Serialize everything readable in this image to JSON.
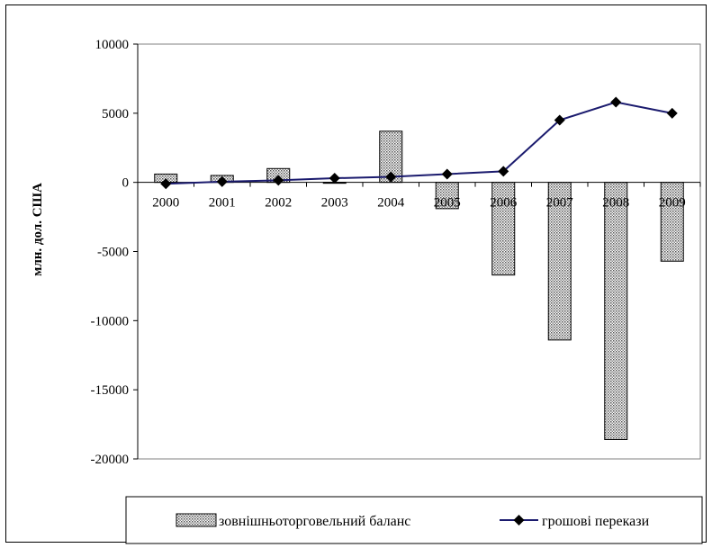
{
  "chart_data": {
    "type": "bar",
    "title": "",
    "xlabel": "",
    "ylabel": "млн. дол. США",
    "ylim": [
      -20000,
      10000
    ],
    "yticks": [
      10000,
      5000,
      0,
      -5000,
      -10000,
      -15000,
      -20000
    ],
    "ytick_labels": [
      "10000",
      "5000",
      "0",
      "-5000",
      "-10000",
      "-15000",
      "-20000"
    ],
    "categories": [
      "2000",
      "2001",
      "2002",
      "2003",
      "2004",
      "2005",
      "2006",
      "2007",
      "2008",
      "2009"
    ],
    "grid": false,
    "legend_position": "bottom",
    "series": [
      {
        "name": "зовнішньоторговельний баланс",
        "type": "bar",
        "values": [
          600,
          500,
          1000,
          -50,
          3700,
          -1900,
          -6700,
          -11400,
          -18600,
          -5700
        ]
      },
      {
        "name": "грошові перекази",
        "type": "line",
        "values": [
          -100,
          50,
          150,
          300,
          400,
          600,
          800,
          4500,
          5800,
          5000
        ]
      }
    ],
    "colors": {
      "bar_fill": "#d9d9d9",
      "bar_stroke": "#000000",
      "line": "#1b1b6e",
      "marker": "#000000"
    }
  }
}
